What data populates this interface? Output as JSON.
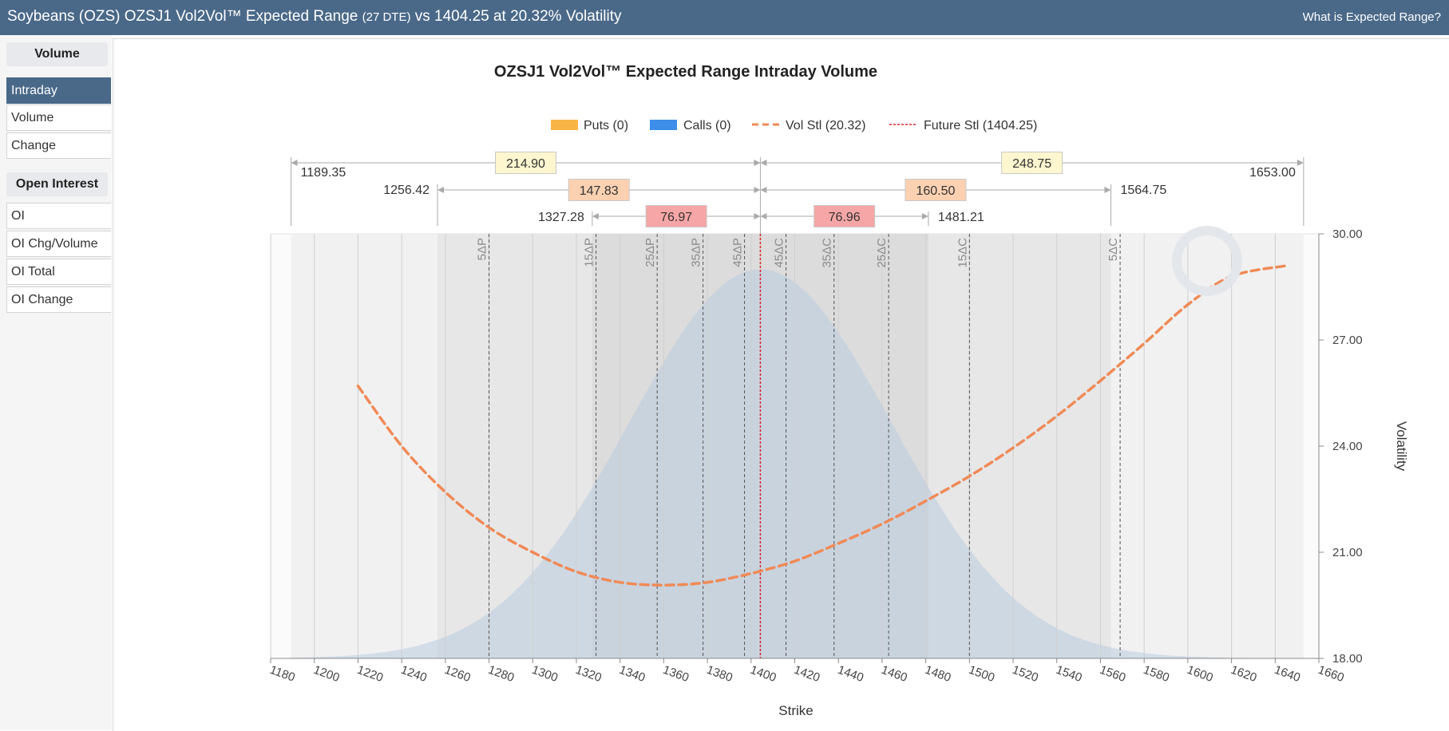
{
  "header": {
    "title_main": "Soybeans (OZS) OZSJ1 Vol2Vol™ Expected Range",
    "title_dte": "(27 DTE)",
    "title_rest": "vs 1404.25 at 20.32% Volatility",
    "help_link": "What is Expected Range?"
  },
  "sidebar": {
    "volume_heading": "Volume",
    "volume_items": [
      {
        "label": "Intraday",
        "active": true
      },
      {
        "label": "Volume",
        "active": false
      },
      {
        "label": "Change",
        "active": false
      }
    ],
    "oi_heading": "Open Interest",
    "oi_items": [
      {
        "label": "OI"
      },
      {
        "label": "OI Chg/Volume"
      },
      {
        "label": "OI Total"
      },
      {
        "label": "OI Change"
      }
    ]
  },
  "chart_data": {
    "type": "line",
    "title": "OZSJ1 Vol2Vol™ Expected Range Intraday Volume",
    "xlabel": "Strike",
    "ylabel": "Volatility",
    "xlim": [
      1180,
      1660
    ],
    "ylim": [
      18,
      30
    ],
    "x_ticks": [
      1180,
      1200,
      1220,
      1240,
      1260,
      1280,
      1300,
      1320,
      1340,
      1360,
      1380,
      1400,
      1420,
      1440,
      1460,
      1480,
      1500,
      1520,
      1540,
      1560,
      1580,
      1600,
      1620,
      1640,
      1660
    ],
    "y_ticks": [
      "18.00",
      "21.00",
      "24.00",
      "27.00",
      "30.00"
    ],
    "legend": [
      {
        "name": "Puts (0)",
        "color": "#f8b545"
      },
      {
        "name": "Calls (0)",
        "color": "#3d8ee8"
      },
      {
        "name": "Vol Stl (20.32)",
        "color": "#f08a57"
      },
      {
        "name": "Future Stl (1404.25)",
        "color": "#d6262b"
      }
    ],
    "future_settle": 1404.25,
    "vol_curve": {
      "x": [
        1220,
        1240,
        1260,
        1280,
        1300,
        1320,
        1340,
        1360,
        1380,
        1400,
        1420,
        1440,
        1460,
        1480,
        1500,
        1520,
        1540,
        1560,
        1580,
        1600,
        1620,
        1645
      ],
      "y": [
        25.7,
        24.0,
        22.7,
        21.7,
        21.0,
        20.45,
        20.15,
        20.07,
        20.15,
        20.4,
        20.75,
        21.25,
        21.8,
        22.45,
        23.15,
        23.95,
        24.85,
        25.85,
        26.9,
        28.0,
        28.8,
        29.1
      ]
    },
    "delta_lines": [
      {
        "label": "5ΔP",
        "x": 1280
      },
      {
        "label": "15ΔP",
        "x": 1329
      },
      {
        "label": "25ΔP",
        "x": 1357
      },
      {
        "label": "35ΔP",
        "x": 1378
      },
      {
        "label": "45ΔP",
        "x": 1397
      },
      {
        "label": "45ΔC",
        "x": 1416
      },
      {
        "label": "35ΔC",
        "x": 1438
      },
      {
        "label": "25ΔC",
        "x": 1463
      },
      {
        "label": "15ΔC",
        "x": 1500
      },
      {
        "label": "5ΔC",
        "x": 1569
      }
    ],
    "ranges": [
      {
        "low": 1189.35,
        "high": 1653.0,
        "low_label": "1189.35",
        "high_label": "1653.00",
        "down": "214.90",
        "up": "248.75",
        "down_color": "#fdf6cf",
        "up_color": "#fdf6cf"
      },
      {
        "low": 1256.42,
        "high": 1564.75,
        "low_label": "1256.42",
        "high_label": "1564.75",
        "down": "147.83",
        "up": "160.50",
        "down_color": "#fbd1b2",
        "up_color": "#fbd1b2"
      },
      {
        "low": 1327.28,
        "high": 1481.21,
        "low_label": "1327.28",
        "high_label": "1481.21",
        "down": "76.97",
        "up": "76.96",
        "down_color": "#f6a6a6",
        "up_color": "#f6a6a6"
      }
    ]
  }
}
